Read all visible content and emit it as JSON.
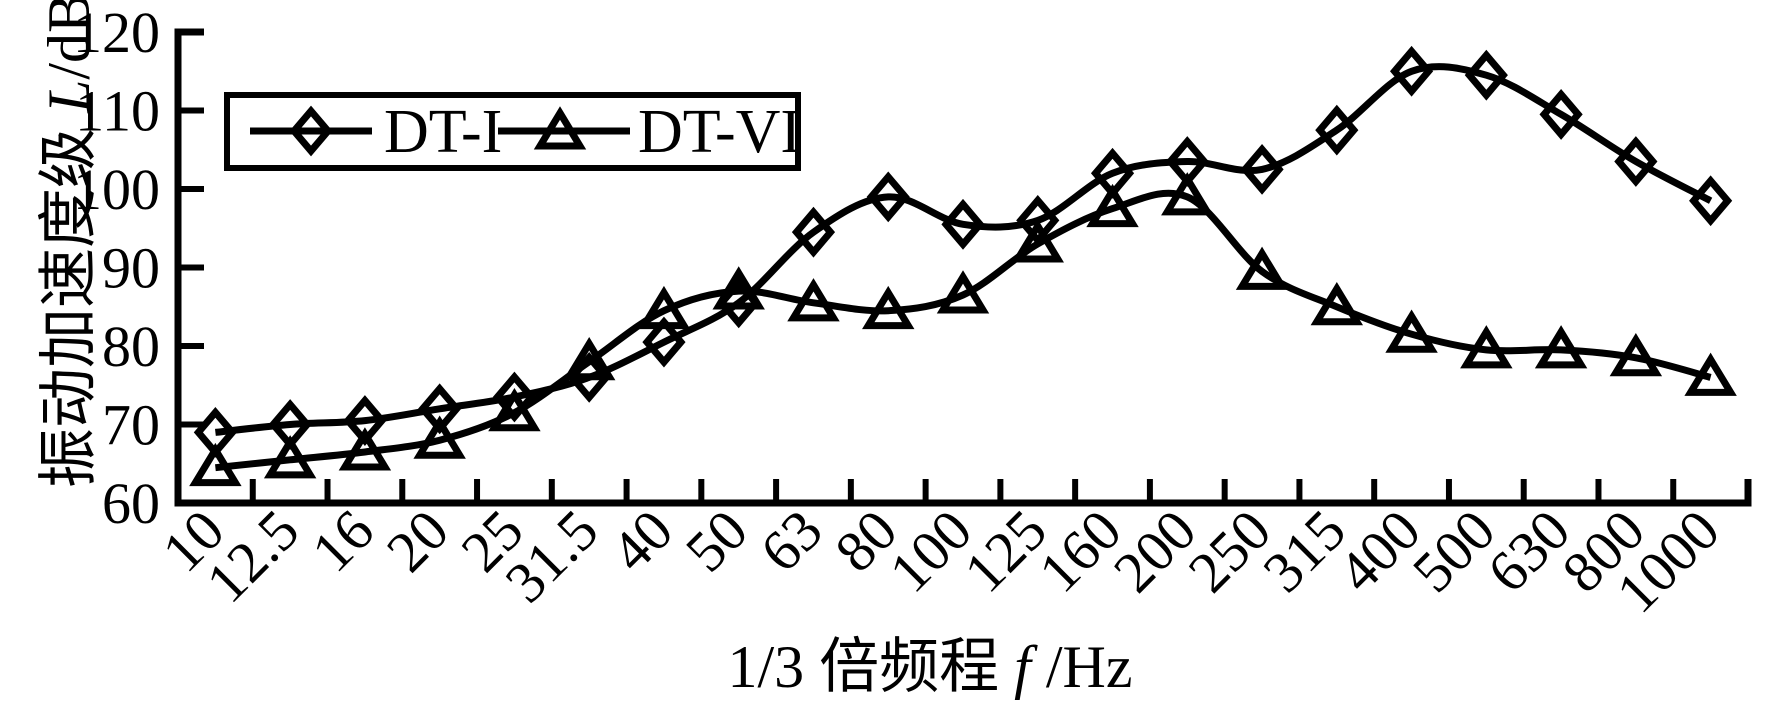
{
  "chart_data": {
    "type": "line",
    "title": "",
    "xlabel": "1/3 倍频程 f /Hz",
    "xlabel_parts": {
      "prefix": "1/3 倍频程 ",
      "italic": "f",
      "suffix": " /Hz"
    },
    "ylabel": "振动加速度级 L/dB",
    "ylabel_parts": {
      "prefix": "振动加速度级 ",
      "italic": "L",
      "suffix": "/dB"
    },
    "categories": [
      "10",
      "12.5",
      "16",
      "20",
      "25",
      "31.5",
      "40",
      "50",
      "63",
      "80",
      "100",
      "125",
      "160",
      "200",
      "250",
      "315",
      "400",
      "500",
      "630",
      "800",
      "1000"
    ],
    "ylim": [
      60,
      120
    ],
    "yticks": [
      60,
      70,
      80,
      90,
      100,
      110,
      120
    ],
    "grid": false,
    "legend_position": "top-left",
    "axis_color": "#000000",
    "background": "#ffffff",
    "series": [
      {
        "name": "DT-I",
        "marker": "diamond",
        "color": "#000000",
        "values": [
          69,
          70,
          70.5,
          72,
          73.5,
          76,
          80.5,
          85.5,
          94.5,
          99,
          95.5,
          96,
          102,
          103.5,
          102.5,
          107.5,
          115,
          114.5,
          109.5,
          103.5,
          98.5
        ]
      },
      {
        "name": "DT-VI",
        "marker": "triangle",
        "color": "#000000",
        "values": [
          64.5,
          65.5,
          66.5,
          68,
          71.5,
          78,
          84.5,
          87,
          85.5,
          84.5,
          86.5,
          93,
          97.5,
          99,
          89.5,
          85,
          81.5,
          79.5,
          79.5,
          78.5,
          76
        ]
      }
    ]
  }
}
